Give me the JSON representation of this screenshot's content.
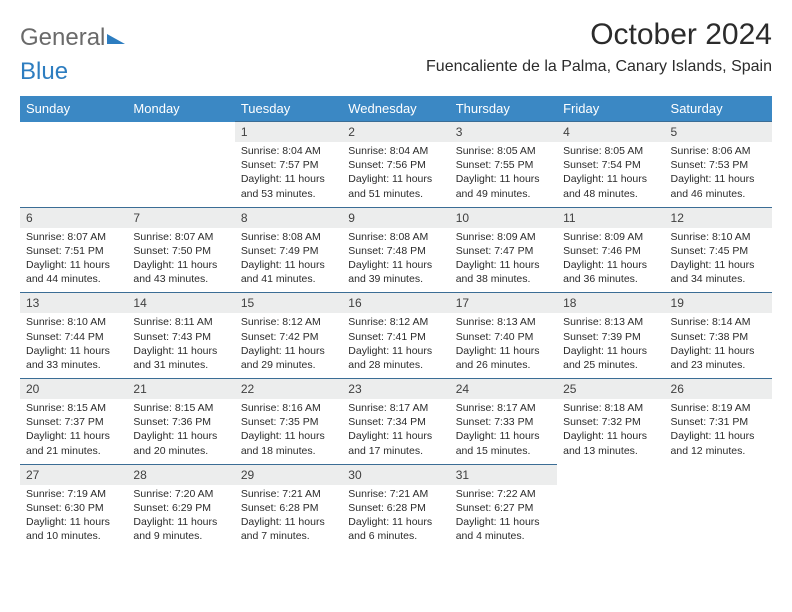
{
  "logo": {
    "part1": "General",
    "part2": "Blue"
  },
  "title": "October 2024",
  "location": "Fuencaliente de la Palma, Canary Islands, Spain",
  "colors": {
    "header_bg": "#3b88c4",
    "header_text": "#ffffff",
    "daynum_bg": "#eceded",
    "row_border": "#3b6d95",
    "logo_gray": "#6a6a6a",
    "logo_blue": "#2d7dc0",
    "body_text": "#2b2b2b"
  },
  "weekdays": [
    "Sunday",
    "Monday",
    "Tuesday",
    "Wednesday",
    "Thursday",
    "Friday",
    "Saturday"
  ],
  "weeks": [
    [
      {
        "empty": true,
        "n": "",
        "sr": "",
        "ss": "",
        "dl": ""
      },
      {
        "empty": true,
        "n": "",
        "sr": "",
        "ss": "",
        "dl": ""
      },
      {
        "n": "1",
        "sr": "Sunrise: 8:04 AM",
        "ss": "Sunset: 7:57 PM",
        "dl": "Daylight: 11 hours and 53 minutes."
      },
      {
        "n": "2",
        "sr": "Sunrise: 8:04 AM",
        "ss": "Sunset: 7:56 PM",
        "dl": "Daylight: 11 hours and 51 minutes."
      },
      {
        "n": "3",
        "sr": "Sunrise: 8:05 AM",
        "ss": "Sunset: 7:55 PM",
        "dl": "Daylight: 11 hours and 49 minutes."
      },
      {
        "n": "4",
        "sr": "Sunrise: 8:05 AM",
        "ss": "Sunset: 7:54 PM",
        "dl": "Daylight: 11 hours and 48 minutes."
      },
      {
        "n": "5",
        "sr": "Sunrise: 8:06 AM",
        "ss": "Sunset: 7:53 PM",
        "dl": "Daylight: 11 hours and 46 minutes."
      }
    ],
    [
      {
        "n": "6",
        "sr": "Sunrise: 8:07 AM",
        "ss": "Sunset: 7:51 PM",
        "dl": "Daylight: 11 hours and 44 minutes."
      },
      {
        "n": "7",
        "sr": "Sunrise: 8:07 AM",
        "ss": "Sunset: 7:50 PM",
        "dl": "Daylight: 11 hours and 43 minutes."
      },
      {
        "n": "8",
        "sr": "Sunrise: 8:08 AM",
        "ss": "Sunset: 7:49 PM",
        "dl": "Daylight: 11 hours and 41 minutes."
      },
      {
        "n": "9",
        "sr": "Sunrise: 8:08 AM",
        "ss": "Sunset: 7:48 PM",
        "dl": "Daylight: 11 hours and 39 minutes."
      },
      {
        "n": "10",
        "sr": "Sunrise: 8:09 AM",
        "ss": "Sunset: 7:47 PM",
        "dl": "Daylight: 11 hours and 38 minutes."
      },
      {
        "n": "11",
        "sr": "Sunrise: 8:09 AM",
        "ss": "Sunset: 7:46 PM",
        "dl": "Daylight: 11 hours and 36 minutes."
      },
      {
        "n": "12",
        "sr": "Sunrise: 8:10 AM",
        "ss": "Sunset: 7:45 PM",
        "dl": "Daylight: 11 hours and 34 minutes."
      }
    ],
    [
      {
        "n": "13",
        "sr": "Sunrise: 8:10 AM",
        "ss": "Sunset: 7:44 PM",
        "dl": "Daylight: 11 hours and 33 minutes."
      },
      {
        "n": "14",
        "sr": "Sunrise: 8:11 AM",
        "ss": "Sunset: 7:43 PM",
        "dl": "Daylight: 11 hours and 31 minutes."
      },
      {
        "n": "15",
        "sr": "Sunrise: 8:12 AM",
        "ss": "Sunset: 7:42 PM",
        "dl": "Daylight: 11 hours and 29 minutes."
      },
      {
        "n": "16",
        "sr": "Sunrise: 8:12 AM",
        "ss": "Sunset: 7:41 PM",
        "dl": "Daylight: 11 hours and 28 minutes."
      },
      {
        "n": "17",
        "sr": "Sunrise: 8:13 AM",
        "ss": "Sunset: 7:40 PM",
        "dl": "Daylight: 11 hours and 26 minutes."
      },
      {
        "n": "18",
        "sr": "Sunrise: 8:13 AM",
        "ss": "Sunset: 7:39 PM",
        "dl": "Daylight: 11 hours and 25 minutes."
      },
      {
        "n": "19",
        "sr": "Sunrise: 8:14 AM",
        "ss": "Sunset: 7:38 PM",
        "dl": "Daylight: 11 hours and 23 minutes."
      }
    ],
    [
      {
        "n": "20",
        "sr": "Sunrise: 8:15 AM",
        "ss": "Sunset: 7:37 PM",
        "dl": "Daylight: 11 hours and 21 minutes."
      },
      {
        "n": "21",
        "sr": "Sunrise: 8:15 AM",
        "ss": "Sunset: 7:36 PM",
        "dl": "Daylight: 11 hours and 20 minutes."
      },
      {
        "n": "22",
        "sr": "Sunrise: 8:16 AM",
        "ss": "Sunset: 7:35 PM",
        "dl": "Daylight: 11 hours and 18 minutes."
      },
      {
        "n": "23",
        "sr": "Sunrise: 8:17 AM",
        "ss": "Sunset: 7:34 PM",
        "dl": "Daylight: 11 hours and 17 minutes."
      },
      {
        "n": "24",
        "sr": "Sunrise: 8:17 AM",
        "ss": "Sunset: 7:33 PM",
        "dl": "Daylight: 11 hours and 15 minutes."
      },
      {
        "n": "25",
        "sr": "Sunrise: 8:18 AM",
        "ss": "Sunset: 7:32 PM",
        "dl": "Daylight: 11 hours and 13 minutes."
      },
      {
        "n": "26",
        "sr": "Sunrise: 8:19 AM",
        "ss": "Sunset: 7:31 PM",
        "dl": "Daylight: 11 hours and 12 minutes."
      }
    ],
    [
      {
        "n": "27",
        "sr": "Sunrise: 7:19 AM",
        "ss": "Sunset: 6:30 PM",
        "dl": "Daylight: 11 hours and 10 minutes."
      },
      {
        "n": "28",
        "sr": "Sunrise: 7:20 AM",
        "ss": "Sunset: 6:29 PM",
        "dl": "Daylight: 11 hours and 9 minutes."
      },
      {
        "n": "29",
        "sr": "Sunrise: 7:21 AM",
        "ss": "Sunset: 6:28 PM",
        "dl": "Daylight: 11 hours and 7 minutes."
      },
      {
        "n": "30",
        "sr": "Sunrise: 7:21 AM",
        "ss": "Sunset: 6:28 PM",
        "dl": "Daylight: 11 hours and 6 minutes."
      },
      {
        "n": "31",
        "sr": "Sunrise: 7:22 AM",
        "ss": "Sunset: 6:27 PM",
        "dl": "Daylight: 11 hours and 4 minutes."
      },
      {
        "empty": true,
        "n": "",
        "sr": "",
        "ss": "",
        "dl": ""
      },
      {
        "empty": true,
        "n": "",
        "sr": "",
        "ss": "",
        "dl": ""
      }
    ]
  ]
}
